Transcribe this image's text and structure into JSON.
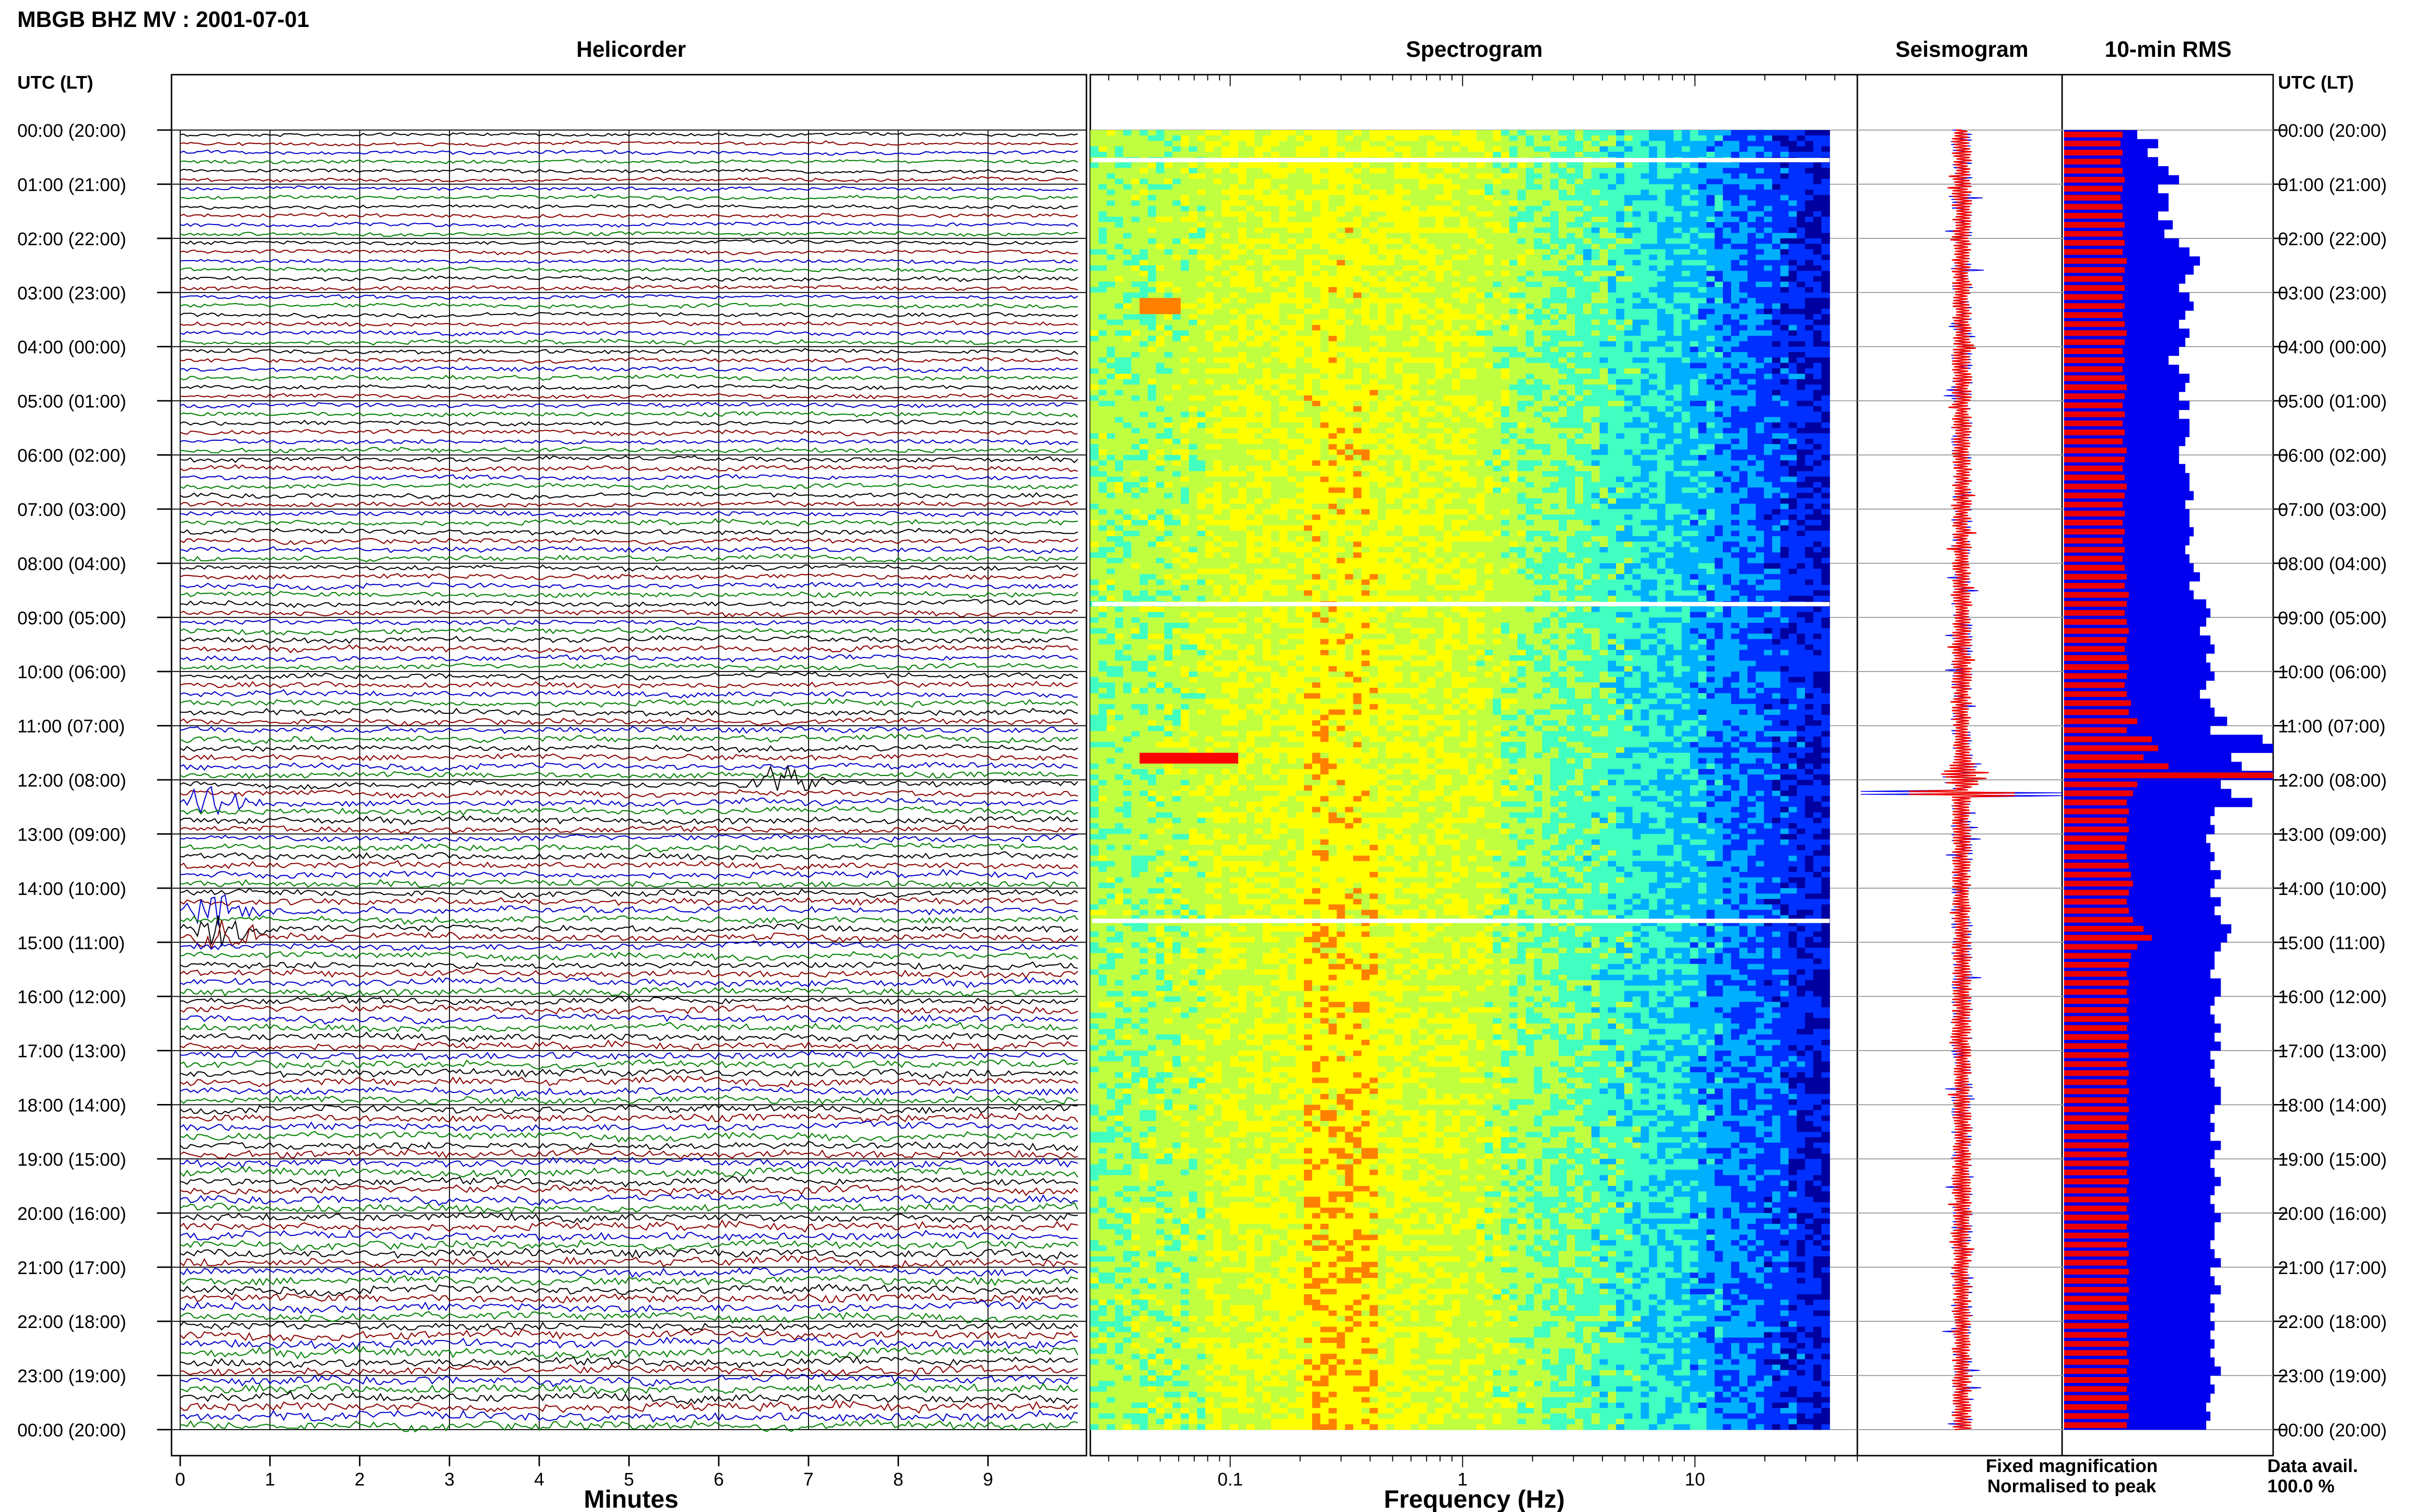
{
  "page_title": "MBGB BHZ MV : 2001-07-01",
  "panels": {
    "helicorder": "Helicorder",
    "spectrogram": "Spectrogram",
    "seismogram": "Seismogram",
    "rms": "10-min RMS"
  },
  "time_axis_label": "UTC (LT)",
  "hour_labels": [
    "00:00 (20:00)",
    "01:00 (21:00)",
    "02:00 (22:00)",
    "03:00 (23:00)",
    "04:00 (00:00)",
    "05:00 (01:00)",
    "06:00 (02:00)",
    "07:00 (03:00)",
    "08:00 (04:00)",
    "09:00 (05:00)",
    "10:00 (06:00)",
    "11:00 (07:00)",
    "12:00 (08:00)",
    "13:00 (09:00)",
    "14:00 (10:00)",
    "15:00 (11:00)",
    "16:00 (12:00)",
    "17:00 (13:00)",
    "18:00 (14:00)",
    "19:00 (15:00)",
    "20:00 (16:00)",
    "21:00 (17:00)",
    "22:00 (18:00)",
    "23:00 (19:00)",
    "00:00 (20:00)"
  ],
  "legend": {
    "fixed": "Fixed magnification",
    "normalised": "Normalised to peak",
    "fixed_color": "#0000ee",
    "normalised_color": "#ee0000"
  },
  "data_availability": {
    "label": "Data avail.",
    "value": "100.0 %"
  },
  "chart_data": [
    {
      "type": "line",
      "name": "helicorder",
      "title": "Helicorder",
      "xlabel": "Minutes",
      "x_ticks": [
        "0",
        "1",
        "2",
        "3",
        "4",
        "5",
        "6",
        "7",
        "8",
        "9"
      ],
      "xlim": [
        0,
        10
      ],
      "rows": 144,
      "trace_colors": [
        "#000000",
        "#8b0000",
        "#0000cc",
        "#008000"
      ],
      "events": [
        {
          "hour": 11.95,
          "minute": 6.7,
          "color": "#8b0000"
        },
        {
          "hour": 14.4,
          "minute": 0.4,
          "color": "#008000"
        },
        {
          "hour": 14.75,
          "minute": 0.5,
          "color": "#0000cc"
        },
        {
          "hour": 12.3,
          "minute": 0.4,
          "color": "#000000"
        }
      ]
    },
    {
      "type": "heatmap",
      "name": "spectrogram",
      "title": "Spectrogram",
      "xlabel": "Frequency (Hz)",
      "x_ticks": [
        "0.1",
        "1",
        "10"
      ],
      "x_scale": "log",
      "xlim": [
        0.025,
        50
      ],
      "data_gaps_hours": [
        0.55,
        8.75,
        14.6
      ],
      "colormap": [
        "#0000a0",
        "#0030ff",
        "#00b0ff",
        "#40ffc0",
        "#c0ff40",
        "#ffff00",
        "#ff8000",
        "#ff0000"
      ]
    },
    {
      "type": "line",
      "name": "seismogram",
      "title": "Seismogram",
      "series": [
        {
          "name": "Fixed magnification",
          "color": "#0000ee"
        },
        {
          "name": "Normalised to peak",
          "color": "#ee0000"
        }
      ],
      "peak_hour": 12.25
    },
    {
      "type": "bar",
      "name": "rms",
      "title": "10-min RMS",
      "bins_per_hour": 6,
      "fixed_magnification": [
        0.35,
        0.45,
        0.4,
        0.45,
        0.5,
        0.55,
        0.45,
        0.5,
        0.5,
        0.45,
        0.52,
        0.48,
        0.55,
        0.6,
        0.65,
        0.62,
        0.58,
        0.55,
        0.6,
        0.62,
        0.58,
        0.55,
        0.6,
        0.58,
        0.55,
        0.5,
        0.55,
        0.6,
        0.58,
        0.55,
        0.6,
        0.55,
        0.6,
        0.6,
        0.58,
        0.55,
        0.55,
        0.58,
        0.6,
        0.6,
        0.62,
        0.58,
        0.6,
        0.6,
        0.62,
        0.6,
        0.58,
        0.6,
        0.62,
        0.65,
        0.6,
        0.62,
        0.68,
        0.7,
        0.68,
        0.65,
        0.7,
        0.72,
        0.68,
        0.7,
        0.72,
        0.68,
        0.65,
        0.7,
        0.72,
        0.78,
        0.7,
        0.95,
        1.0,
        0.8,
        0.85,
        1.0,
        0.75,
        0.8,
        0.9,
        0.72,
        0.7,
        0.72,
        0.68,
        0.7,
        0.72,
        0.7,
        0.75,
        0.72,
        0.7,
        0.75,
        0.72,
        0.75,
        0.8,
        0.78,
        0.75,
        0.72,
        0.72,
        0.7,
        0.75,
        0.75,
        0.72,
        0.7,
        0.72,
        0.75,
        0.72,
        0.75,
        0.7,
        0.72,
        0.7,
        0.72,
        0.75,
        0.75,
        0.72,
        0.7,
        0.72,
        0.7,
        0.75,
        0.72,
        0.7,
        0.72,
        0.75,
        0.72,
        0.7,
        0.72,
        0.75,
        0.72,
        0.72,
        0.7,
        0.72,
        0.75,
        0.7,
        0.72,
        0.75,
        0.7,
        0.72,
        0.7,
        0.72,
        0.7,
        0.72,
        0.7,
        0.72,
        0.75,
        0.7,
        0.72,
        0.7,
        0.68,
        0.7,
        0.68
      ],
      "normalised_to_peak": [
        0.28,
        0.27,
        0.28,
        0.27,
        0.28,
        0.29,
        0.28,
        0.27,
        0.28,
        0.28,
        0.29,
        0.28,
        0.29,
        0.28,
        0.3,
        0.29,
        0.28,
        0.29,
        0.28,
        0.29,
        0.28,
        0.29,
        0.3,
        0.29,
        0.28,
        0.29,
        0.28,
        0.29,
        0.3,
        0.29,
        0.28,
        0.29,
        0.28,
        0.29,
        0.28,
        0.3,
        0.29,
        0.28,
        0.29,
        0.3,
        0.29,
        0.28,
        0.29,
        0.28,
        0.29,
        0.28,
        0.29,
        0.28,
        0.29,
        0.3,
        0.29,
        0.31,
        0.3,
        0.29,
        0.3,
        0.31,
        0.3,
        0.29,
        0.3,
        0.31,
        0.3,
        0.29,
        0.3,
        0.32,
        0.31,
        0.35,
        0.3,
        0.42,
        0.45,
        0.38,
        0.5,
        1.0,
        0.35,
        0.33,
        0.3,
        0.31,
        0.3,
        0.31,
        0.3,
        0.29,
        0.3,
        0.31,
        0.32,
        0.33,
        0.31,
        0.3,
        0.31,
        0.33,
        0.38,
        0.42,
        0.35,
        0.32,
        0.31,
        0.3,
        0.31,
        0.3,
        0.31,
        0.3,
        0.31,
        0.3,
        0.31,
        0.3,
        0.31,
        0.3,
        0.31,
        0.3,
        0.31,
        0.3,
        0.31,
        0.3,
        0.31,
        0.3,
        0.31,
        0.3,
        0.31,
        0.3,
        0.31,
        0.3,
        0.31,
        0.3,
        0.31,
        0.3,
        0.31,
        0.3,
        0.31,
        0.3,
        0.31,
        0.3,
        0.31,
        0.3,
        0.31,
        0.3,
        0.31,
        0.3,
        0.31,
        0.3,
        0.31,
        0.3,
        0.31,
        0.3,
        0.31,
        0.3,
        0.31,
        0.3
      ]
    }
  ]
}
